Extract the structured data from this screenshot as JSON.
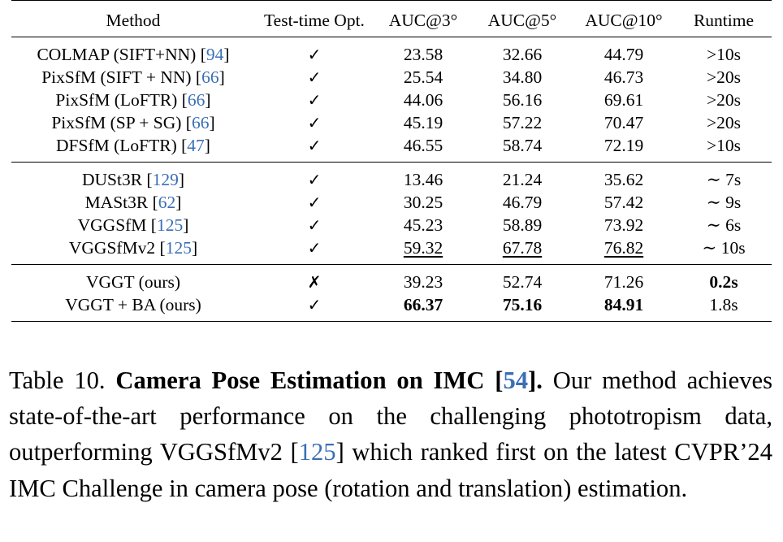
{
  "table": {
    "headers": {
      "method": "Method",
      "tto": "Test-time Opt.",
      "auc3": "AUC@3°",
      "auc5": "AUC@5°",
      "auc10": "AUC@10°",
      "runtime": "Runtime"
    },
    "groups": [
      [
        {
          "method": "COLMAP (SIFT+NN) [",
          "cite": "94",
          "close": "]",
          "tto": "✓",
          "auc3": "23.58",
          "auc5": "32.66",
          "auc10": "44.79",
          "runtime": ">10s"
        },
        {
          "method": "PixSfM (SIFT + NN) [",
          "cite": "66",
          "close": "]",
          "tto": "✓",
          "auc3": "25.54",
          "auc5": "34.80",
          "auc10": "46.73",
          "runtime": ">20s"
        },
        {
          "method": "PixSfM (LoFTR) [",
          "cite": "66",
          "close": "]",
          "tto": "✓",
          "auc3": "44.06",
          "auc5": "56.16",
          "auc10": "69.61",
          "runtime": ">20s"
        },
        {
          "method": "PixSfM (SP + SG) [",
          "cite": "66",
          "close": "]",
          "tto": "✓",
          "auc3": "45.19",
          "auc5": "57.22",
          "auc10": "70.47",
          "runtime": ">20s"
        },
        {
          "method": "DFSfM (LoFTR) [",
          "cite": "47",
          "close": "]",
          "tto": "✓",
          "auc3": "46.55",
          "auc5": "58.74",
          "auc10": "72.19",
          "runtime": ">10s"
        }
      ],
      [
        {
          "method": "DUSt3R [",
          "cite": "129",
          "close": "]",
          "tto": "✓",
          "auc3": "13.46",
          "auc5": "21.24",
          "auc10": "35.62",
          "runtime": "∼ 7s"
        },
        {
          "method": "MASt3R [",
          "cite": "62",
          "close": "]",
          "tto": "✓",
          "auc3": "30.25",
          "auc5": "46.79",
          "auc10": "57.42",
          "runtime": "∼ 9s"
        },
        {
          "method": "VGGSfM [",
          "cite": "125",
          "close": "]",
          "tto": "✓",
          "auc3": "45.23",
          "auc5": "58.89",
          "auc10": "73.92",
          "runtime": "∼ 6s"
        },
        {
          "method": "VGGSfMv2 [",
          "cite": "125",
          "close": "]",
          "tto": "✓",
          "auc3": "59.32",
          "auc5": "67.78",
          "auc10": "76.82",
          "runtime": "∼ 10s"
        }
      ],
      [
        {
          "method": "VGGT (ours)",
          "cite": "",
          "close": "",
          "tto": "✗",
          "auc3": "39.23",
          "auc5": "52.74",
          "auc10": "71.26",
          "runtime": "0.2s"
        },
        {
          "method": "VGGT + BA (ours)",
          "cite": "",
          "close": "",
          "tto": "✓",
          "auc3": "66.37",
          "auc5": "75.16",
          "auc10": "84.91",
          "runtime": "1.8s"
        }
      ]
    ]
  },
  "caption": {
    "label": "Table 10.",
    "title_a": "Camera Pose Estimation on IMC [",
    "title_cite": "54",
    "title_b": "].",
    "text_a": "Our method achieves state-of-the-art performance on the challenging phototropism data, outperforming VGGSfMv2 [",
    "text_cite": "125",
    "text_b": "] which ranked first on the latest CVPR’24 IMC Challenge in camera pose (rotation and translation) estimation."
  },
  "colors": {
    "citation": "#3a6fb5",
    "text": "#000000"
  }
}
